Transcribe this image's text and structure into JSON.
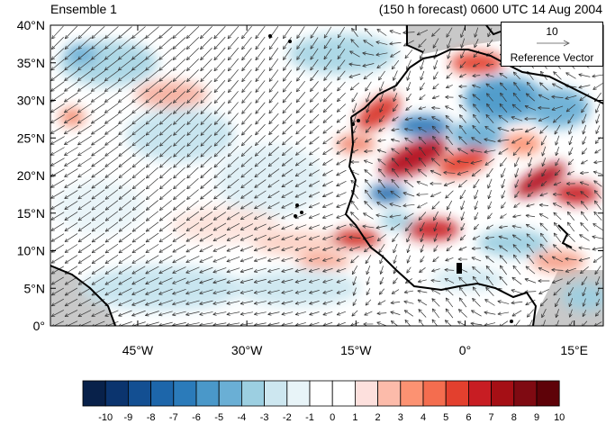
{
  "header": {
    "left_title": "Ensemble 1",
    "right_title": "(150 h forecast) 0600 UTC 14 Aug 2004"
  },
  "map": {
    "y_ticks": [
      "40°N",
      "35°N",
      "30°N",
      "25°N",
      "20°N",
      "15°N",
      "10°N",
      "5°N",
      "0°"
    ],
    "x_ticks": [
      "45°W",
      "30°W",
      "15°W",
      "0°",
      "15°E"
    ],
    "lat_range": [
      0,
      40
    ],
    "lon_range": [
      -57,
      19
    ],
    "land_mask_color": "#c8c8c8",
    "prevailing_wind": "northeasterly trade winds"
  },
  "reference_vector": {
    "value": "10",
    "label": "Reference Vector"
  },
  "colorbar": {
    "labels": [
      "-10",
      "-9",
      "-8",
      "-7",
      "-6",
      "-5",
      "-4",
      "-3",
      "-2",
      "-1",
      "0",
      "1",
      "2",
      "3",
      "4",
      "5",
      "6",
      "7",
      "8",
      "9",
      "10"
    ],
    "colors": [
      "#08214a",
      "#0b346e",
      "#134f92",
      "#1d66aa",
      "#2b7bba",
      "#4a98c9",
      "#6aafd5",
      "#9ccfe1",
      "#cde7f0",
      "#e8f4f8",
      "#ffffff",
      "#ffffff",
      "#fde0dd",
      "#fcbbaa",
      "#fc9272",
      "#f46d4f",
      "#e3402e",
      "#c81d23",
      "#a50f15",
      "#7f0a12",
      "#5e0208"
    ]
  }
}
